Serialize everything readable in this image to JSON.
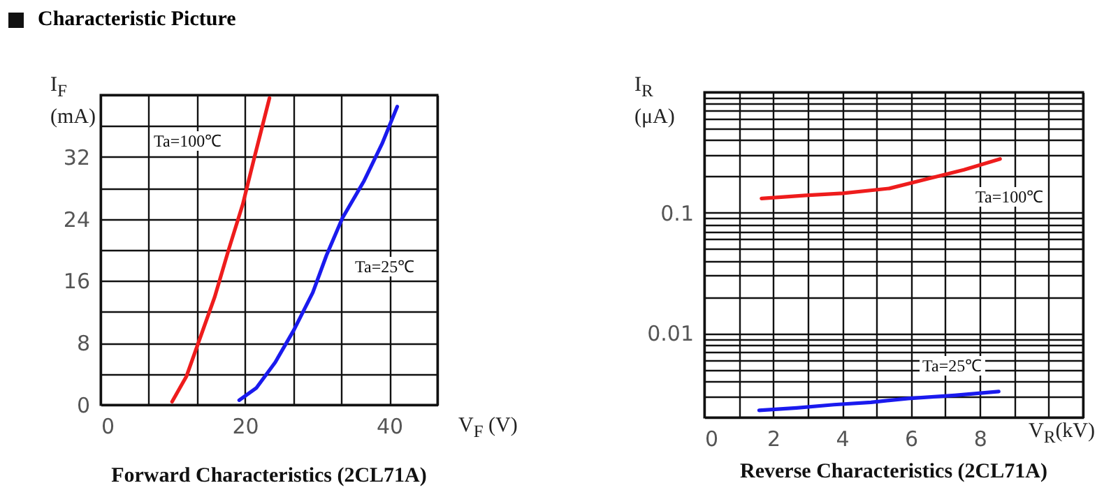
{
  "chart_data": [
    {
      "type": "line",
      "title": "Forward Characteristics (2CL71A)",
      "xlabel": "V$_{F}$ (V)",
      "ylabel": "I$_{F}$ (mA)",
      "annotations": [
        "Characteristic Picture",
        "Ta=100℃",
        "Ta=25℃"
      ],
      "xlim": [
        0,
        46.67
      ],
      "xticks": [
        0,
        {
          "value": 6.67,
          "label": null
        },
        {
          "value": 13.33,
          "label": null
        },
        20,
        {
          "value": 26.67,
          "label": null
        },
        {
          "value": 33.33,
          "label": null
        },
        40,
        {
          "value": 46.67,
          "label": null
        }
      ],
      "ylim": [
        0,
        40
      ],
      "yticks": [
        0,
        {
          "value": 4,
          "label": null
        },
        8,
        {
          "value": 12,
          "label": null
        },
        16,
        {
          "value": 20,
          "label": null
        },
        24,
        {
          "value": 28,
          "label": null
        },
        32,
        {
          "value": 36,
          "label": null
        },
        {
          "value": 40,
          "label": null
        }
      ],
      "grid": true,
      "series": [
        {
          "color": "#ee1c1c",
          "x": [
            9.9,
            11.9,
            13.5,
            15.8,
            17.7,
            19.7,
            21.3,
            23.4
          ],
          "values": [
            0.4,
            3.7,
            7.9,
            13.9,
            19.9,
            25.9,
            31.9,
            39.6
          ]
        },
        {
          "color": "#1a1aee",
          "x": [
            19.2,
            21.6,
            24.2,
            26.8,
            29.4,
            31.3,
            33.5,
            36.5,
            39.0,
            41.1
          ],
          "values": [
            0.6,
            2.2,
            5.5,
            9.7,
            14.5,
            19.3,
            24.1,
            28.9,
            33.7,
            38.5
          ]
        }
      ]
    },
    {
      "type": "line",
      "title": "Reverse Characteristics (2CL71A)",
      "xlabel": "V$_{R}$(kV)",
      "ylabel": "I$_{R}$ (μA)",
      "annotations": [
        "Ta=100℃",
        "Ta=25℃"
      ],
      "log": "y",
      "xlim": [
        0,
        11
      ],
      "xticks": [
        0,
        {
          "value": 1,
          "label": null
        },
        2,
        {
          "value": 3,
          "label": null
        },
        4,
        {
          "value": 5,
          "label": null
        },
        6,
        {
          "value": 7,
          "label": null
        },
        8,
        {
          "value": 9,
          "label": null
        },
        {
          "value": 10,
          "label": null
        },
        {
          "value": 11,
          "label": null
        }
      ],
      "ylim": [
        0.002,
        1
      ],
      "yticks": [
        {
          "value": 0.002,
          "label": null
        },
        {
          "value": 0.003,
          "label": null
        },
        {
          "value": 0.004,
          "label": null
        },
        {
          "value": 0.005,
          "label": null
        },
        {
          "value": 0.006,
          "label": null
        },
        {
          "value": 0.007,
          "label": null
        },
        {
          "value": 0.008,
          "label": null
        },
        {
          "value": 0.009,
          "label": null
        },
        0.01,
        {
          "value": 0.02,
          "label": null
        },
        {
          "value": 0.03,
          "label": null
        },
        {
          "value": 0.04,
          "label": null
        },
        {
          "value": 0.05,
          "label": null
        },
        {
          "value": 0.06,
          "label": null
        },
        {
          "value": 0.07,
          "label": null
        },
        {
          "value": 0.08,
          "label": null
        },
        {
          "value": 0.09,
          "label": null
        },
        0.1,
        {
          "value": 0.2,
          "label": null
        },
        {
          "value": 0.3,
          "label": null
        },
        {
          "value": 0.4,
          "label": null
        },
        {
          "value": 0.5,
          "label": null
        },
        {
          "value": 0.6,
          "label": null
        },
        {
          "value": 0.7,
          "label": null
        },
        {
          "value": 0.8,
          "label": null
        },
        {
          "value": 0.9,
          "label": null
        },
        {
          "value": 1,
          "label": null
        }
      ],
      "grid": true,
      "series": [
        {
          "color": "#ee1c1c",
          "x": [
            1.66,
            2.95,
            4.03,
            5.38,
            6.46,
            7.54,
            8.59
          ],
          "values": [
            0.131,
            0.139,
            0.145,
            0.159,
            0.19,
            0.227,
            0.279
          ]
        },
        {
          "color": "#1a1aee",
          "x": [
            1.59,
            2.68,
            3.76,
            4.84,
            5.92,
            7.27,
            8.55
          ],
          "values": [
            0.00229,
            0.0024,
            0.00255,
            0.00267,
            0.00287,
            0.00305,
            0.00328
          ]
        }
      ]
    }
  ]
}
